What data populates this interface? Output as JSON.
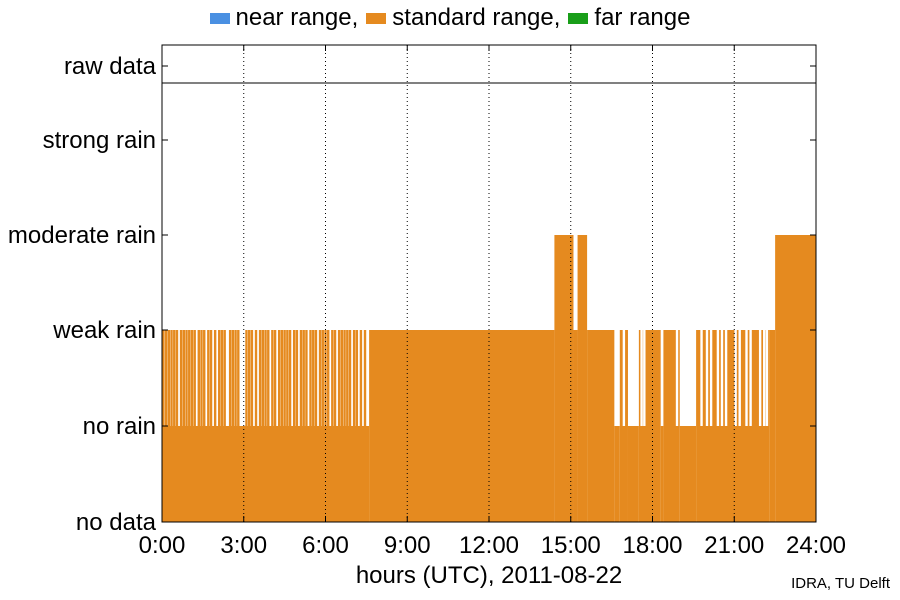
{
  "legend": [
    {
      "label": "near range,",
      "color": "#4a90e2"
    },
    {
      "label": "standard range,",
      "color": "#e58a1f"
    },
    {
      "label": "far range",
      "color": "#199e19"
    }
  ],
  "credit": "IDRA, TU Delft",
  "chart_data": {
    "type": "area",
    "xlabel": "hours (UTC), 2011-08-22",
    "ylabel": "",
    "x_ticks": [
      "0:00",
      "3:00",
      "6:00",
      "9:00",
      "12:00",
      "15:00",
      "18:00",
      "21:00",
      "24:00"
    ],
    "xlim": [
      0,
      24
    ],
    "y_categories": [
      "no data",
      "no rain",
      "weak rain",
      "moderate rain",
      "strong rain",
      "raw data"
    ],
    "grid": "vertical dotted",
    "legend_position": "top",
    "fill_color": "#e58a1f",
    "series": [
      {
        "name": "standard range",
        "segments": [
          {
            "from": 0.0,
            "to": 7.6,
            "level": "no rain"
          },
          {
            "from": 7.6,
            "to": 14.4,
            "level": "weak rain"
          },
          {
            "from": 14.4,
            "to": 15.1,
            "level": "moderate rain"
          },
          {
            "from": 15.1,
            "to": 15.25,
            "level": "weak rain"
          },
          {
            "from": 15.25,
            "to": 15.6,
            "level": "moderate rain"
          },
          {
            "from": 15.6,
            "to": 16.6,
            "level": "weak rain"
          },
          {
            "from": 16.6,
            "to": 16.8,
            "level": "no rain"
          },
          {
            "from": 16.8,
            "to": 17.1,
            "level": "weak rain"
          },
          {
            "from": 17.1,
            "to": 17.5,
            "level": "no rain"
          },
          {
            "from": 17.5,
            "to": 18.3,
            "level": "weak rain"
          },
          {
            "from": 18.3,
            "to": 18.4,
            "level": "no rain"
          },
          {
            "from": 18.4,
            "to": 19.0,
            "level": "weak rain"
          },
          {
            "from": 19.0,
            "to": 19.6,
            "level": "no rain"
          },
          {
            "from": 19.6,
            "to": 22.3,
            "level": "weak rain"
          },
          {
            "from": 22.3,
            "to": 22.5,
            "level": "weak rain"
          },
          {
            "from": 22.5,
            "to": 24.0,
            "level": "moderate rain"
          }
        ],
        "spikes_to_weak_rain": [
          0.05,
          0.15,
          0.25,
          0.35,
          0.45,
          0.55,
          0.7,
          0.8,
          0.9,
          1.0,
          1.1,
          1.2,
          1.35,
          1.45,
          1.55,
          1.7,
          1.8,
          1.95,
          2.1,
          2.2,
          2.3,
          2.5,
          2.6,
          2.7,
          2.8,
          3.1,
          3.2,
          3.3,
          3.45,
          3.6,
          3.7,
          3.8,
          3.9,
          4.05,
          4.15,
          4.3,
          4.4,
          4.5,
          4.6,
          4.7,
          4.85,
          4.95,
          5.1,
          5.2,
          5.3,
          5.45,
          5.55,
          5.65,
          5.8,
          5.9,
          6.0,
          6.1,
          6.25,
          6.35,
          6.5,
          6.6,
          6.7,
          6.8,
          6.9,
          7.05,
          7.15,
          7.3,
          7.45
        ],
        "dropouts_to_no_rain": [
          16.95,
          17.6,
          17.7,
          18.9,
          19.8,
          20.0,
          20.15,
          20.4,
          20.55,
          20.7,
          21.05,
          21.2,
          21.45,
          21.6,
          21.95,
          22.1,
          22.2
        ]
      }
    ]
  }
}
